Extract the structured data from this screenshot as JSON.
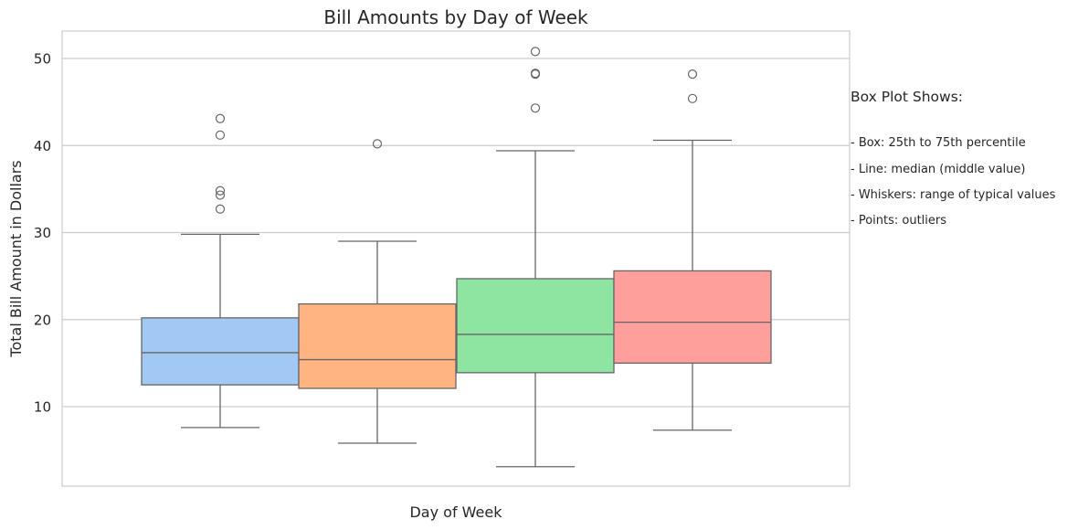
{
  "chart_data": {
    "type": "box",
    "title": "Bill Amounts by Day of Week",
    "xlabel": "Day of Week",
    "ylabel": "Total Bill Amount in Dollars",
    "ylim": [
      1,
      53
    ],
    "yticks": [
      10,
      20,
      30,
      40,
      50
    ],
    "grid": true,
    "series": [
      {
        "color": "#a1c9f4",
        "whisker_low": 7.6,
        "q1": 12.5,
        "median": 16.2,
        "q3": 20.2,
        "whisker_high": 29.8,
        "outliers": [
          32.7,
          34.3,
          34.8,
          41.2,
          43.1
        ]
      },
      {
        "color": "#ffb482",
        "whisker_low": 5.8,
        "q1": 12.1,
        "median": 15.4,
        "q3": 21.8,
        "whisker_high": 29.0,
        "outliers": [
          40.2
        ]
      },
      {
        "color": "#8de5a1",
        "whisker_low": 3.1,
        "q1": 13.9,
        "median": 18.3,
        "q3": 24.7,
        "whisker_high": 39.4,
        "outliers": [
          44.3,
          48.2,
          48.3,
          50.8
        ]
      },
      {
        "color": "#ff9f9b",
        "whisker_low": 7.3,
        "q1": 15.0,
        "median": 19.7,
        "q3": 25.6,
        "whisker_high": 40.6,
        "outliers": [
          45.4,
          48.2
        ]
      }
    ]
  },
  "legend_note": {
    "title": "Box Plot Shows:",
    "lines": [
      "- Box: 25th to 75th percentile",
      "- Line: median (middle value)",
      "- Whiskers: range of typical values",
      "- Points: outliers"
    ]
  }
}
